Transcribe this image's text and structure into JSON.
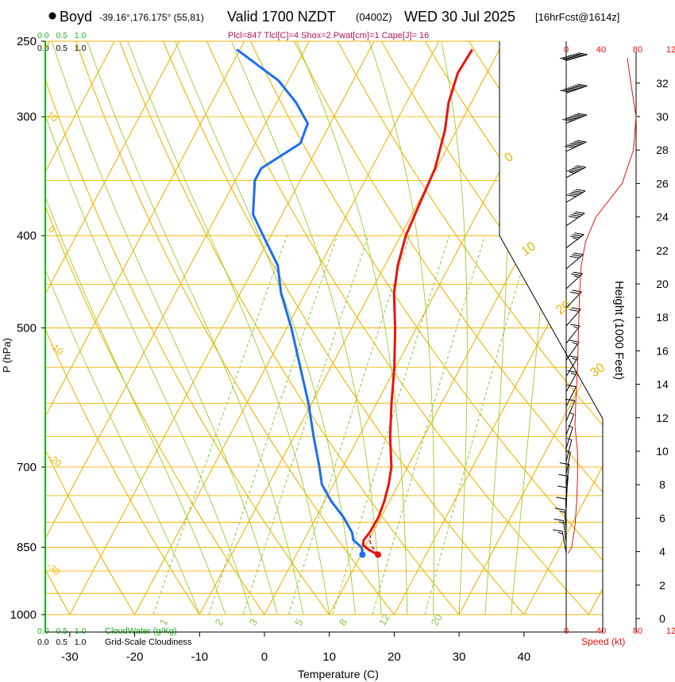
{
  "header": {
    "station": "Boyd",
    "location": "-39.16°,176.175° (55,81)",
    "valid": "Valid 1700 NZDT",
    "utc": "(0400Z)",
    "date": "WED 30 Jul 2025",
    "forecast": "[16hrFcst@1614z]",
    "indices": "Plcl=847 Tlcl[C]=4 Shox=2 Pwat[cm]=1 Cape[J]= 16"
  },
  "colors": {
    "temperature": "#e8140c",
    "dewpoint": "#1a6ef0",
    "isotherm": "#f0b400",
    "dry_adiabat": "#f0b400",
    "moist_adiabat": "#9ccc2c",
    "mixing_ratio": "#8cc63f",
    "cloud": "#19b419",
    "wind": "#000000",
    "speed": "#e8140c"
  },
  "chart_data": {
    "type": "line",
    "title": "Skew-T Log-P Forecast Sounding",
    "xlabel": "Temperature (C)",
    "ylabel": "P (hPa)",
    "y2label": "Height (1000 Feet)",
    "x_ticks": [
      "-30",
      "-20",
      "-10",
      "0",
      "10",
      "20",
      "30",
      "40"
    ],
    "x_tick_values": [
      -30,
      -20,
      -10,
      0,
      10,
      20,
      30,
      40
    ],
    "pressure_ticks": [
      "250",
      "300",
      "400",
      "500",
      "700",
      "850",
      "1000"
    ],
    "pressure_tick_values": [
      250,
      300,
      400,
      500,
      700,
      850,
      1000
    ],
    "height_ticks": [
      "0",
      "2",
      "4",
      "6",
      "8",
      "10",
      "12",
      "14",
      "16",
      "18",
      "20",
      "22",
      "24",
      "26",
      "28",
      "30",
      "32"
    ],
    "isotherm_labels": [
      "0",
      "10",
      "20",
      "30"
    ],
    "isotherm_label_values": [
      0,
      10,
      20,
      30
    ],
    "dry_adiabat_labels": [
      "10",
      "0",
      "-10",
      "-20",
      "-30"
    ],
    "dry_adiabat_label_values": [
      10,
      0,
      -10,
      -20,
      -30
    ],
    "mixing_ratio_labels": [
      "1",
      "2",
      "3",
      "5",
      "8",
      "12",
      "20"
    ],
    "mixing_ratio_values": [
      1,
      2,
      3,
      5,
      8,
      12,
      20
    ],
    "temperature": {
      "name": "Temperature",
      "points": [
        [
          865,
          12.6
        ],
        [
          855,
          10.8
        ],
        [
          845,
          9.5
        ],
        [
          835,
          9.2
        ],
        [
          820,
          9.5
        ],
        [
          790,
          9.6
        ],
        [
          760,
          9.2
        ],
        [
          730,
          8.5
        ],
        [
          700,
          7.5
        ],
        [
          650,
          4.8
        ],
        [
          600,
          2.3
        ],
        [
          550,
          -0.2
        ],
        [
          500,
          -3.3
        ],
        [
          460,
          -6.3
        ],
        [
          430,
          -8.0
        ],
        [
          400,
          -9.2
        ],
        [
          370,
          -9.7
        ],
        [
          340,
          -10.2
        ],
        [
          310,
          -11.8
        ],
        [
          290,
          -13.5
        ],
        [
          270,
          -14.5
        ],
        [
          255,
          -14.2
        ]
      ]
    },
    "parcel": {
      "name": "Parcel (dashed)",
      "points": [
        [
          865,
          12.6
        ],
        [
          850,
          11.2
        ],
        [
          840,
          10.4
        ],
        [
          825,
          9.8
        ]
      ]
    },
    "dewpoint": {
      "name": "Dewpoint",
      "points": [
        [
          865,
          10.2
        ],
        [
          850,
          9.5
        ],
        [
          835,
          7.6
        ],
        [
          820,
          6.8
        ],
        [
          790,
          4.2
        ],
        [
          760,
          1.0
        ],
        [
          730,
          -1.8
        ],
        [
          700,
          -3.6
        ],
        [
          650,
          -7.0
        ],
        [
          600,
          -10.5
        ],
        [
          550,
          -14.7
        ],
        [
          500,
          -19.3
        ],
        [
          460,
          -23.7
        ],
        [
          430,
          -26.5
        ],
        [
          400,
          -31.2
        ],
        [
          380,
          -34.5
        ],
        [
          350,
          -37.0
        ],
        [
          340,
          -37.0
        ],
        [
          320,
          -33.0
        ],
        [
          305,
          -33.5
        ],
        [
          290,
          -37.0
        ],
        [
          275,
          -41.5
        ],
        [
          255,
          -50.5
        ]
      ]
    },
    "wind_speed_profile": {
      "name": "Wind speed (kt)",
      "x_ticks": [
        "0",
        "40",
        "80",
        "12"
      ],
      "points": [
        [
          3.9,
          2
        ],
        [
          4.2,
          6
        ],
        [
          5.5,
          10
        ],
        [
          7.0,
          12
        ],
        [
          8.5,
          13
        ],
        [
          10.0,
          13
        ],
        [
          11.5,
          10
        ],
        [
          13.0,
          11
        ],
        [
          15.0,
          13
        ],
        [
          17.0,
          14
        ],
        [
          19.0,
          15
        ],
        [
          21.0,
          17
        ],
        [
          22.5,
          22
        ],
        [
          24.0,
          34
        ],
        [
          26.0,
          64
        ],
        [
          28.0,
          77
        ],
        [
          30.0,
          80
        ],
        [
          32.0,
          74
        ],
        [
          33.5,
          70
        ]
      ]
    },
    "wind_barb_speeds_kt": [
      15,
      15,
      15,
      10,
      10,
      10,
      10,
      5,
      5,
      5,
      5,
      10,
      10,
      15,
      15,
      15,
      15,
      20,
      20,
      25,
      30,
      35,
      40,
      50,
      55,
      60,
      70,
      80,
      85
    ]
  },
  "labels": {
    "cloud_top": "0.0   0.5   1.0",
    "cloud_top_green": "0.0   0.5   1.0",
    "cloudwater": "CloudWater (g/Kg)",
    "cloudiness": "Grid-Scale Cloudiness",
    "speed": "Speed (kt)"
  }
}
